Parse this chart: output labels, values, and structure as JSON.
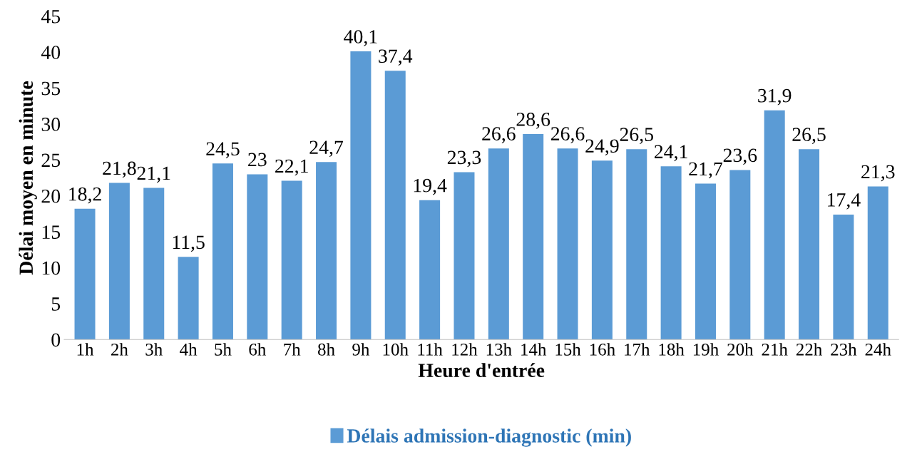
{
  "chart_data": {
    "type": "bar",
    "xlabel": "Heure d'entrée",
    "ylabel": "Délai moyen en minute",
    "categories": [
      "1h",
      "2h",
      "3h",
      "4h",
      "5h",
      "6h",
      "7h",
      "8h",
      "9h",
      "10h",
      "11h",
      "12h",
      "13h",
      "14h",
      "15h",
      "16h",
      "17h",
      "18h",
      "19h",
      "20h",
      "21h",
      "22h",
      "23h",
      "24h"
    ],
    "series": [
      {
        "name": "Délais admission-diagnostic (min)",
        "color": "#5b9bd5",
        "values": [
          18.2,
          21.8,
          21.1,
          11.5,
          24.5,
          23,
          22.1,
          24.7,
          40.1,
          37.4,
          19.4,
          23.3,
          26.6,
          28.6,
          26.6,
          24.9,
          26.5,
          24.1,
          21.7,
          23.6,
          31.9,
          26.5,
          17.4,
          21.3
        ],
        "value_labels": [
          "18,2",
          "21,8",
          "21,1",
          "11,5",
          "24,5",
          "23",
          "22,1",
          "24,7",
          "40,1",
          "37,4",
          "19,4",
          "23,3",
          "26,6",
          "28,6",
          "26,6",
          "24,9",
          "26,5",
          "24,1",
          "21,7",
          "23,6",
          "31,9",
          "26,5",
          "17,4",
          "21,3"
        ]
      }
    ],
    "ylim": [
      0,
      45
    ],
    "yticks": [
      0,
      5,
      10,
      15,
      20,
      25,
      30,
      35,
      40,
      45
    ],
    "grid": false,
    "legend": "bottom"
  }
}
